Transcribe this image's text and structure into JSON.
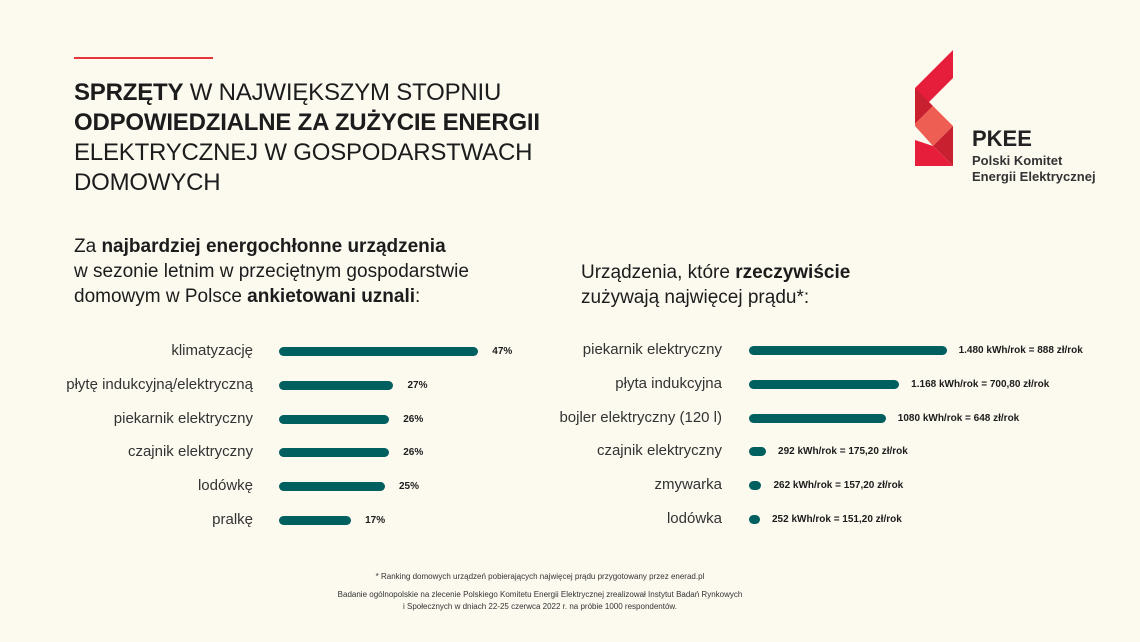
{
  "title": {
    "p1_bold": "SPRZĘTY",
    "p1": " W NAJWIĘKSZYM STOPNIU",
    "p2_bold": "ODPOWIEDZIALNE ZA ZUŻYCIE ENERGII",
    "p3": "ELEKTRYCZNEJ W GOSPODARSTWACH DOMOWYCH"
  },
  "logo": {
    "name": "PKEE",
    "line1": "Polski Komitet",
    "line2": "Energii Elektrycznej",
    "colors": [
      "#e61e3c",
      "#c8202f",
      "#ee5e52"
    ]
  },
  "left_heading": {
    "a": "Za ",
    "b": "najbardziej energochłonne urządzenia",
    "c": "w sezonie letnim w przeciętnym gospodarstwie domowym w Polsce ",
    "d": "ankietowani uznali",
    ":": ":"
  },
  "right_heading": {
    "a": "Urządzenia, które ",
    "b": "rzeczywiście",
    "c": "zużywają najwięcej prądu*:"
  },
  "chart_data": [
    {
      "type": "bar",
      "orientation": "horizontal",
      "categories": [
        "klimatyzację",
        "płytę indukcyjną/elektryczną",
        "piekarnik elektryczny",
        "czajnik elektryczny",
        "lodówkę",
        "pralkę"
      ],
      "values": [
        47,
        27,
        26,
        26,
        25,
        17
      ],
      "labels": [
        "47%",
        "27%",
        "26%",
        "26%",
        "25%",
        "17%"
      ],
      "color": "#00605f"
    },
    {
      "type": "bar",
      "orientation": "horizontal",
      "categories": [
        "piekarnik elektryczny",
        "płyta indukcyjna",
        "bojler elektryczny (120 l)",
        "czajnik elektryczny",
        "zmywarka",
        "lodówka"
      ],
      "values": [
        1480,
        1168,
        1080,
        292,
        262,
        252
      ],
      "labels": [
        "1.480 kWh/rok = 888 zł/rok",
        "1.168 kWh/rok = 700,80 zł/rok",
        "1080 kWh/rok = 648 zł/rok",
        "292 kWh/rok = 175,20 zł/rok",
        "262 kWh/rok = 157,20 zł/rok",
        "252 kWh/rok = 151,20 zł/rok"
      ],
      "color": "#00605f"
    }
  ],
  "footnotes": {
    "f1": "* Ranking domowych urządzeń pobierających najwięcej prądu przygotowany przez enerad.pl",
    "f2": "Badanie ogólnopolskie na zlecenie Polskiego Komitetu Energii Elektrycznej zrealizował Instytut Badań Rynkowych",
    "f3": "i Społecznych w dniach 22-25 czerwca 2022 r. na próbie 1000 respondentów."
  }
}
